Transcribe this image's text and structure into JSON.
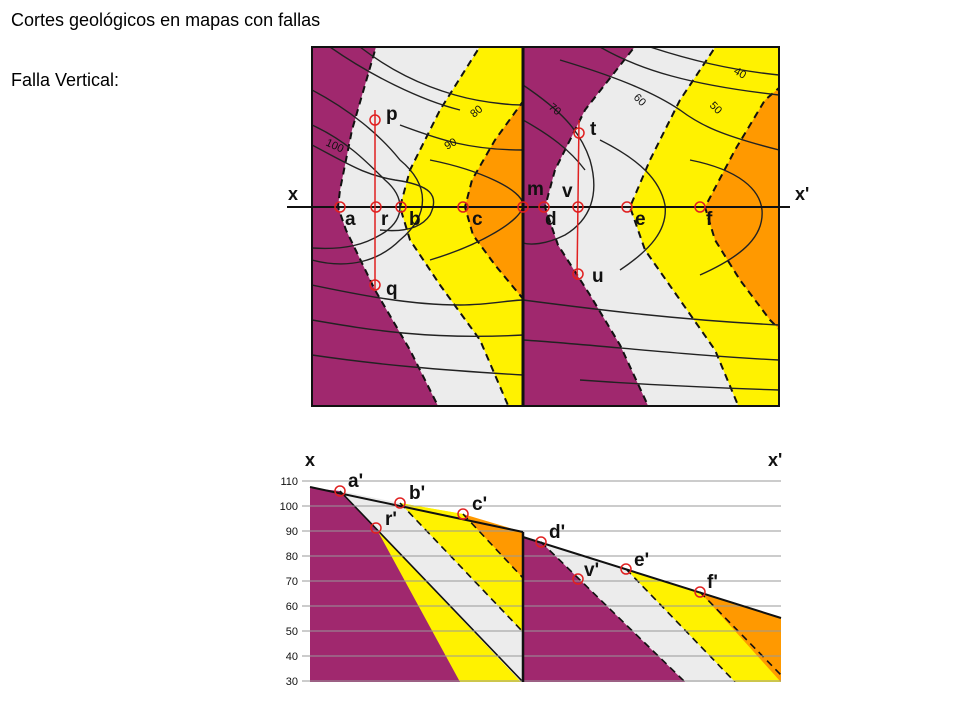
{
  "title": "Cortes geológicos en mapas con fallas",
  "subtitle": "Falla Vertical:",
  "colors": {
    "purple": "#a0286e",
    "lightgray": "#ececec",
    "yellow": "#fff200",
    "orange": "#ff9900",
    "marker": "#e02020"
  },
  "map": {
    "axis_start": "x",
    "axis_end": "x'",
    "fault_point": "m",
    "points": [
      "a",
      "r",
      "b",
      "c",
      "d",
      "v",
      "e",
      "f"
    ],
    "section_points": [
      "p",
      "q",
      "t",
      "u"
    ],
    "contours": [
      "100",
      "90",
      "80",
      "70",
      "60",
      "50",
      "40"
    ]
  },
  "section": {
    "axis_start": "x",
    "axis_end": "x'",
    "elevations": [
      "110",
      "100",
      "90",
      "80",
      "70",
      "60",
      "50",
      "40",
      "30"
    ],
    "points": [
      "a'",
      "r'",
      "b'",
      "c'",
      "d'",
      "v'",
      "e'",
      "f'"
    ]
  }
}
